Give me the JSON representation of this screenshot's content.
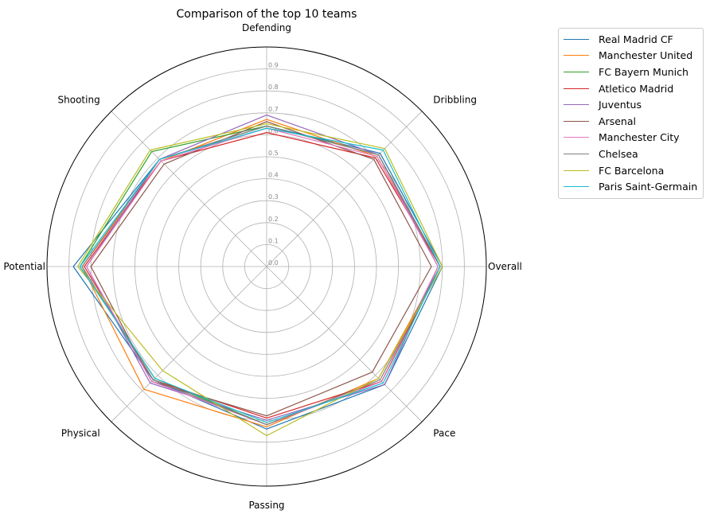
{
  "chart_data": {
    "type": "radar",
    "title": "Comparison of the top 10 teams",
    "axes": [
      "Overall",
      "Dribbling",
      "Defending",
      "Shooting",
      "Potential",
      "Physical",
      "Passing",
      "Pace"
    ],
    "rlim": [
      0,
      1.0
    ],
    "rticks": [
      "0.0",
      "0.1",
      "0.2",
      "0.3",
      "0.4",
      "0.5",
      "0.6",
      "0.7",
      "0.8",
      "0.9"
    ],
    "grid": true,
    "legend_position": "outside-top-right",
    "series": [
      {
        "name": "Real Madrid CF",
        "color": "#1f77b4",
        "values": [
          0.8,
          0.73,
          0.64,
          0.69,
          0.88,
          0.73,
          0.74,
          0.76
        ]
      },
      {
        "name": "Manchester United",
        "color": "#ff7f0e",
        "values": [
          0.79,
          0.71,
          0.67,
          0.68,
          0.84,
          0.79,
          0.73,
          0.72
        ]
      },
      {
        "name": "FC Bayern Munich",
        "color": "#2ca02c",
        "values": [
          0.79,
          0.72,
          0.64,
          0.74,
          0.85,
          0.72,
          0.72,
          0.74
        ]
      },
      {
        "name": "Atletico Madrid",
        "color": "#d62728",
        "values": [
          0.79,
          0.7,
          0.61,
          0.68,
          0.83,
          0.73,
          0.69,
          0.74
        ]
      },
      {
        "name": "Juventus",
        "color": "#9467bd",
        "values": [
          0.78,
          0.72,
          0.69,
          0.69,
          0.82,
          0.75,
          0.7,
          0.76
        ]
      },
      {
        "name": "Arsenal",
        "color": "#8c564b",
        "values": [
          0.75,
          0.69,
          0.66,
          0.66,
          0.8,
          0.74,
          0.68,
          0.68
        ]
      },
      {
        "name": "Manchester City",
        "color": "#e377c2",
        "values": [
          0.78,
          0.71,
          0.63,
          0.68,
          0.82,
          0.74,
          0.72,
          0.74
        ]
      },
      {
        "name": "Chelsea",
        "color": "#7f7f7f",
        "values": [
          0.79,
          0.72,
          0.64,
          0.69,
          0.84,
          0.73,
          0.72,
          0.73
        ]
      },
      {
        "name": "FC Barcelona",
        "color": "#bcbd22",
        "values": [
          0.8,
          0.76,
          0.65,
          0.75,
          0.86,
          0.67,
          0.77,
          0.72
        ]
      },
      {
        "name": "Paris Saint-Germain",
        "color": "#17becf",
        "values": [
          0.79,
          0.75,
          0.63,
          0.69,
          0.85,
          0.72,
          0.71,
          0.75
        ]
      }
    ]
  }
}
